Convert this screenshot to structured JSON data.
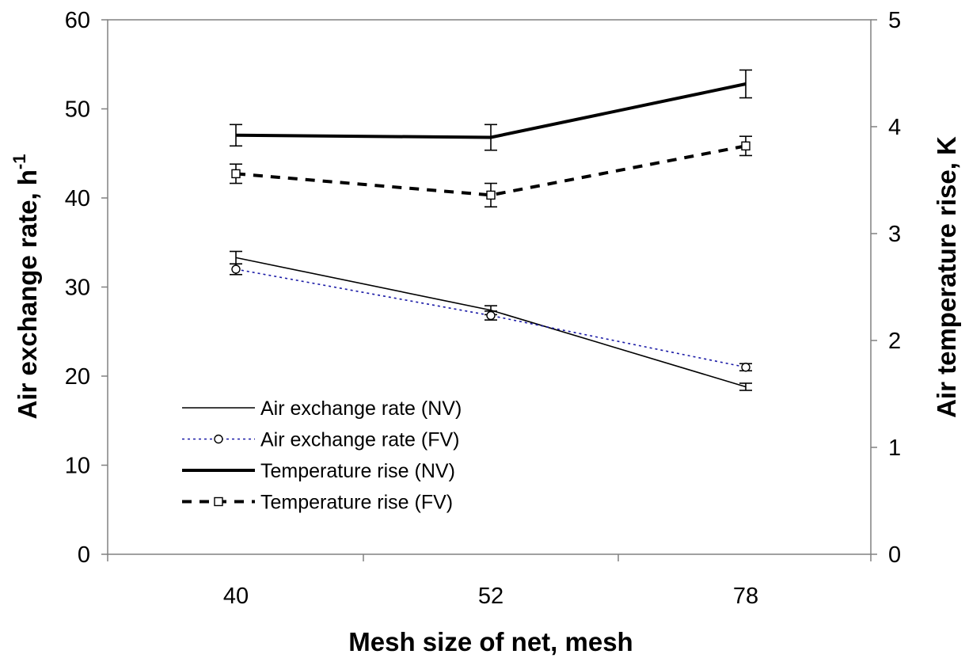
{
  "chart_data": {
    "type": "line",
    "x_axis": {
      "label": "Mesh size of net, mesh",
      "categories": [
        "40",
        "52",
        "78"
      ]
    },
    "y_axis_left": {
      "label": "Air exchange rate, h",
      "label_superscript": "-1",
      "range": [
        0,
        60
      ],
      "ticks": [
        "0",
        "10",
        "20",
        "30",
        "40",
        "50",
        "60"
      ]
    },
    "y_axis_right": {
      "label": "Air temperature rise, K",
      "range": [
        0,
        5
      ],
      "ticks": [
        "0",
        "1",
        "2",
        "3",
        "4",
        "5"
      ]
    },
    "series": [
      {
        "name": "Air exchange rate (NV)",
        "axis": "left",
        "values": [
          33.3,
          27.4,
          18.8
        ],
        "errors": [
          0.7,
          0.5,
          0.4
        ],
        "color": "#000000",
        "style": "thin-solid",
        "marker": "none"
      },
      {
        "name": "Air exchange rate (FV)",
        "axis": "left",
        "values": [
          32.0,
          26.8,
          21.0
        ],
        "errors": [
          0.6,
          0.5,
          0.4
        ],
        "color": "#1a1aa6",
        "style": "dotted",
        "marker": "circle"
      },
      {
        "name": "Temperature rise (NV)",
        "axis": "right",
        "values": [
          3.92,
          3.9,
          4.4
        ],
        "errors": [
          0.1,
          0.12,
          0.13
        ],
        "color": "#000000",
        "style": "thick-solid",
        "marker": "none"
      },
      {
        "name": "Temperature rise (FV)",
        "axis": "right",
        "values": [
          3.56,
          3.36,
          3.82
        ],
        "errors": [
          0.09,
          0.11,
          0.09
        ],
        "color": "#000000",
        "style": "thick-dashed",
        "marker": "square"
      }
    ],
    "legend": "lower-left"
  }
}
